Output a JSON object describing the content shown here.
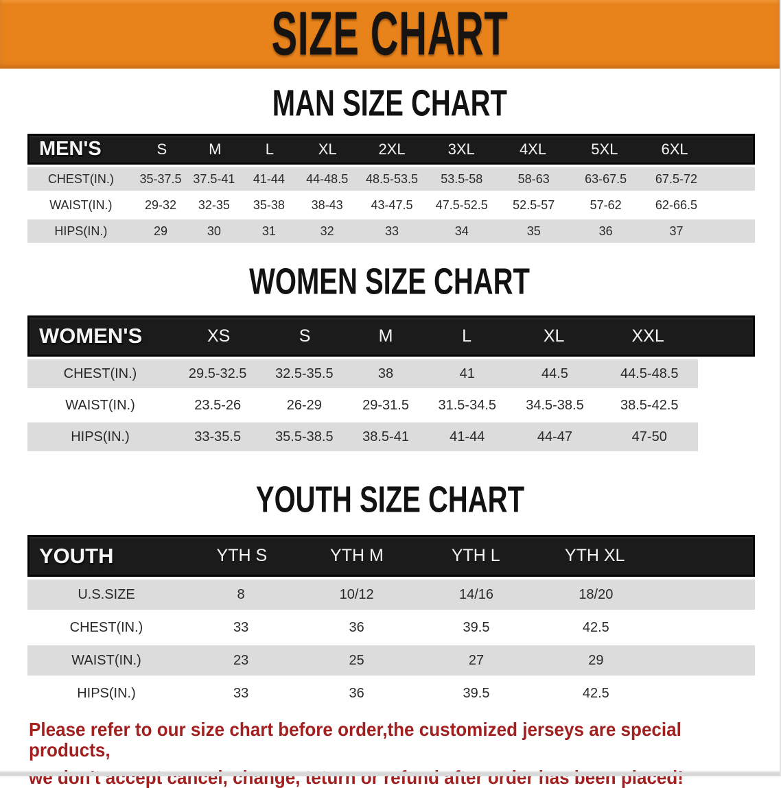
{
  "banner": {
    "title": "SIZE CHART"
  },
  "sections": [
    {
      "heading": "MAN SIZE CHART",
      "group_label": "MEN'S",
      "columns": [
        "S",
        "M",
        "L",
        "XL",
        "2XL",
        "3XL",
        "4XL",
        "5XL",
        "6XL"
      ],
      "rows": [
        {
          "label": "CHEST(IN.)",
          "values": [
            "35-37.5",
            "37.5-41",
            "41-44",
            "44-48.5",
            "48.5-53.5",
            "53.5-58",
            "58-63",
            "63-67.5",
            "67.5-72"
          ]
        },
        {
          "label": "WAIST(IN.)",
          "values": [
            "29-32",
            "32-35",
            "35-38",
            "38-43",
            "43-47.5",
            "47.5-52.5",
            "52.5-57",
            "57-62",
            "62-66.5"
          ]
        },
        {
          "label": "HIPS(IN.)",
          "values": [
            "29",
            "30",
            "31",
            "32",
            "33",
            "34",
            "35",
            "36",
            "37"
          ]
        }
      ]
    },
    {
      "heading": "WOMEN SIZE CHART",
      "group_label": "WOMEN'S",
      "columns": [
        "XS",
        "S",
        "M",
        "L",
        "XL",
        "XXL"
      ],
      "rows": [
        {
          "label": "CHEST(IN.)",
          "values": [
            "29.5-32.5",
            "32.5-35.5",
            "38",
            "41",
            "44.5",
            "44.5-48.5"
          ]
        },
        {
          "label": "WAIST(IN.)",
          "values": [
            "23.5-26",
            "26-29",
            "29-31.5",
            "31.5-34.5",
            "34.5-38.5",
            "38.5-42.5"
          ]
        },
        {
          "label": "HIPS(IN.)",
          "values": [
            "33-35.5",
            "35.5-38.5",
            "38.5-41",
            "41-44",
            "44-47",
            "47-50"
          ]
        }
      ]
    },
    {
      "heading": "YOUTH SIZE CHART",
      "group_label": "YOUTH",
      "columns": [
        "YTH S",
        "YTH M",
        "YTH L",
        "YTH XL"
      ],
      "rows": [
        {
          "label": "U.S.SIZE",
          "values": [
            "8",
            "10/12",
            "14/16",
            "18/20"
          ]
        },
        {
          "label": "CHEST(IN.)",
          "values": [
            "33",
            "36",
            "39.5",
            "42.5"
          ]
        },
        {
          "label": "WAIST(IN.)",
          "values": [
            "23",
            "25",
            "27",
            "29"
          ]
        },
        {
          "label": "HIPS(IN.)",
          "values": [
            "33",
            "36",
            "39.5",
            "42.5"
          ]
        }
      ]
    }
  ],
  "footer": {
    "line1": "Please refer to our size chart before order,the customized jerseys are special products,",
    "line2": "we don't accept cancel, change, teturn or refund after order has been placed!"
  },
  "colors": {
    "banner_bg": "#E8821B",
    "header_bar_bg": "#1B1B1B",
    "row_stripe": "#DCDCDC",
    "footer_text": "#A32020"
  }
}
